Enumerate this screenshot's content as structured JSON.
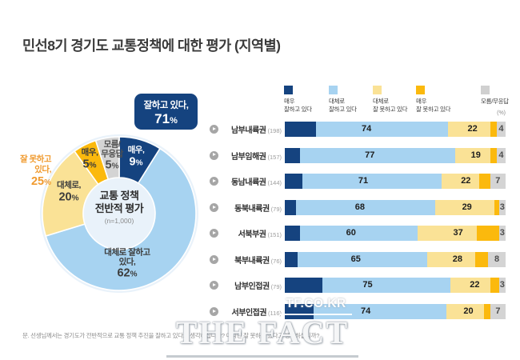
{
  "title": "민선8기 경기도 교통정책에 대한 평가 (지역별)",
  "chart_data": [
    {
      "type": "pie",
      "subtype": "donut",
      "center_title": "교통 정책\n전반적 평가",
      "center_sub": "(n=1,000)",
      "slices": [
        {
          "label": "매우 잘하고 있다",
          "callout": "매우,",
          "value": 9,
          "color": "#15437F",
          "text_color": "#FFFFFF"
        },
        {
          "label": "대체로 잘하고 있다",
          "callout": "대체로 잘하고\n있다,",
          "value": 62,
          "color": "#A7D3F1",
          "text_color": "#3c3c3c"
        },
        {
          "label": "대체로 잘 못하고 있다",
          "callout": "대체로,",
          "value": 20,
          "color": "#FAE296",
          "text_color": "#3c3c3c"
        },
        {
          "label": "매우 잘 못하고 있다",
          "callout": "매우,",
          "value": 5,
          "color": "#FBB90D",
          "text_color": "#3c3c3c"
        },
        {
          "label": "모름/무응답",
          "callout": "모름/\n무응답",
          "value": 5,
          "color": "#D4D4D4",
          "text_color": "#4f4f4f"
        }
      ],
      "annotations": {
        "positive": {
          "text": "잘하고 있다,",
          "value": 71
        },
        "negative": {
          "text": "잘 못하고\n있다,",
          "value": 25,
          "color": "#F09A2E"
        }
      }
    },
    {
      "type": "bar",
      "orientation": "horizontal-stacked",
      "unit": "(%)",
      "legend": [
        {
          "label": "매우\n잘하고 있다",
          "color": "#15437F"
        },
        {
          "label": "대체로\n잘하고 있다",
          "color": "#A7D3F1"
        },
        {
          "label": "대체로\n잘 못하고 있다",
          "color": "#FAE296"
        },
        {
          "label": "매우\n잘 못하고 있다",
          "color": "#FBB90D"
        },
        {
          "label": "모름/무응답",
          "color": "#D0D0D0"
        }
      ],
      "categories": [
        "남부내륙권",
        "남부임해권",
        "동남내륙권",
        "동북내륙권",
        "서북부권",
        "북부내륙권",
        "남부인접권",
        "서부인접권"
      ],
      "rows": [
        {
          "region": "남부내륙권",
          "n": "(198)",
          "segments": [
            14,
            60,
            19,
            3,
            4
          ],
          "label_positive": 74,
          "label_negative": 22,
          "label_dk": 4
        },
        {
          "region": "남부임해권",
          "n": "(157)",
          "segments": [
            7,
            70,
            16,
            3,
            4
          ],
          "label_positive": 77,
          "label_negative": 19,
          "label_dk": 4
        },
        {
          "region": "동남내륙권",
          "n": "(144)",
          "segments": [
            8,
            63,
            17,
            5,
            7
          ],
          "label_positive": 71,
          "label_negative": 22,
          "label_dk": 7
        },
        {
          "region": "동북내륙권",
          "n": "(79)",
          "segments": [
            5,
            63,
            27,
            2,
            3
          ],
          "label_positive": 68,
          "label_negative": 29,
          "label_dk": 3
        },
        {
          "region": "서북부권",
          "n": "(151)",
          "segments": [
            7,
            53,
            27,
            10,
            3
          ],
          "label_positive": 60,
          "label_negative": 37,
          "label_dk": 3
        },
        {
          "region": "북부내륙권",
          "n": "(76)",
          "segments": [
            6,
            59,
            22,
            6,
            8
          ],
          "label_positive": 65,
          "label_negative": 28,
          "label_dk": 8
        },
        {
          "region": "남부인접권",
          "n": "(79)",
          "segments": [
            17,
            58,
            18,
            4,
            3
          ],
          "label_positive": 75,
          "label_negative": 22,
          "label_dk": 3
        },
        {
          "region": "서부인접권",
          "n": "(116)",
          "segments": [
            13,
            61,
            17,
            3,
            7
          ],
          "label_positive": 74,
          "label_negative": 20,
          "label_dk": 7
        }
      ]
    }
  ],
  "footnote": "문. 선생님께서는 경기도가 전반적으로 교통 정책 추진을 잘하고 있다고 생각하십니까? 아니면 잘 못하고 있다고 생각하십니까?",
  "watermark": {
    "site": "TF.CO.KR",
    "logo": "THE FACT"
  }
}
